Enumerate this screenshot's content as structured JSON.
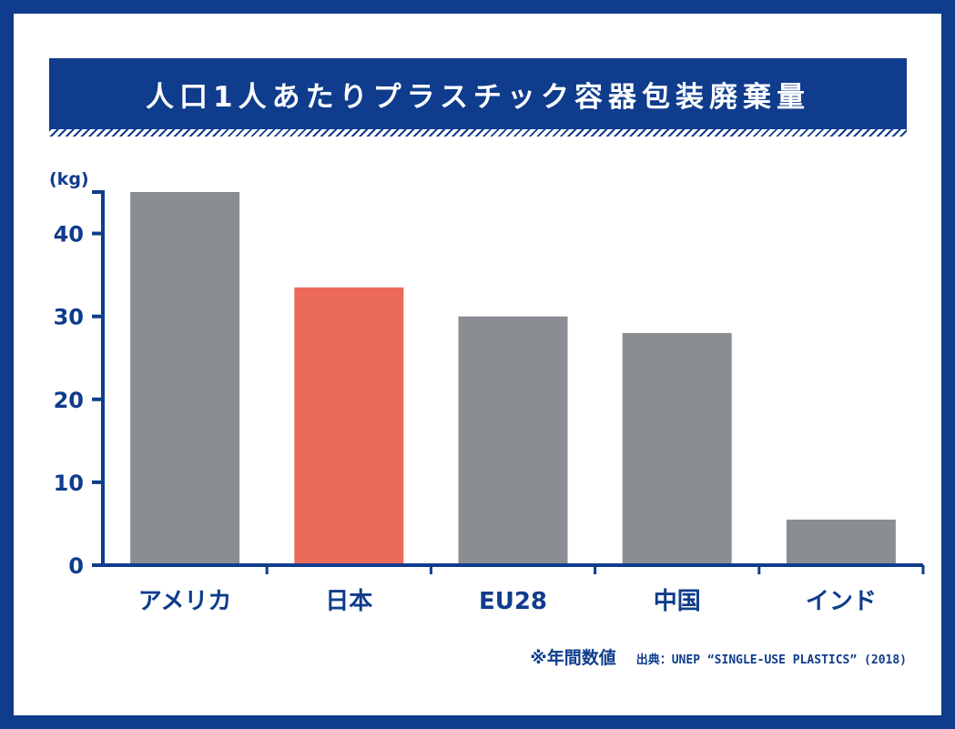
{
  "title": "人口1人あたりプラスチック容器包装廃棄量",
  "note": "※年間数値",
  "source": "出典：UNEP “SINGLE-USE PLASTICS” (2018)",
  "colors": {
    "navy": "#0f3c8c",
    "gray_bar": "#8a8e93",
    "highlight_bar": "#ec6a5c"
  },
  "chart_data": {
    "type": "bar",
    "title": "人口1人あたりプラスチック容器包装廃棄量",
    "ylabel": "(kg)",
    "xlabel": "",
    "categories": [
      "アメリカ",
      "日本",
      "EU28",
      "中国",
      "インド"
    ],
    "values": [
      45,
      33.5,
      30,
      28,
      5.5
    ],
    "highlight": "日本",
    "yticks": [
      0,
      10,
      20,
      30,
      40
    ],
    "ylim": [
      0,
      45
    ],
    "grid": false,
    "legend": "none"
  }
}
